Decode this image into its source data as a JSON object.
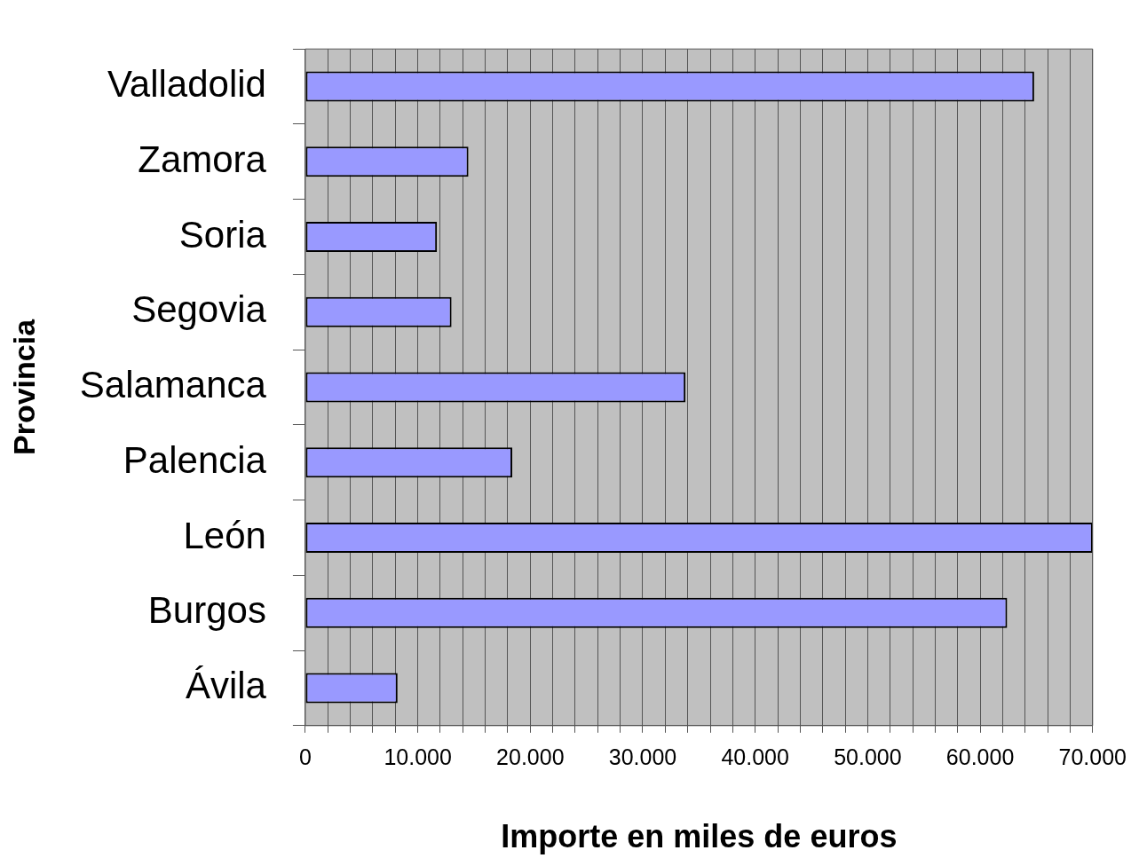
{
  "chart_data": {
    "type": "bar",
    "orientation": "horizontal",
    "xlabel": "Importe en miles de euros",
    "ylabel": "Provincia",
    "categories": [
      "Valladolid",
      "Zamora",
      "Soria",
      "Segovia",
      "Salamanca",
      "Palencia",
      "León",
      "Burgos",
      "Ávila"
    ],
    "values": [
      64800,
      14500,
      11700,
      13000,
      33800,
      18400,
      70000,
      62400,
      8200
    ],
    "color": "#9999ff",
    "xlim": [
      0,
      70000
    ],
    "xticks": [
      0,
      {
        "value": 2000,
        "label": null
      },
      {
        "value": 4000,
        "label": null
      },
      {
        "value": 6000,
        "label": null
      },
      {
        "value": 8000,
        "label": null
      },
      {
        "value": 10000,
        "label": "10.000"
      },
      {
        "value": 12000,
        "label": null
      },
      {
        "value": 14000,
        "label": null
      },
      {
        "value": 16000,
        "label": null
      },
      {
        "value": 18000,
        "label": null
      },
      {
        "value": 20000,
        "label": "20.000"
      },
      {
        "value": 22000,
        "label": null
      },
      {
        "value": 24000,
        "label": null
      },
      {
        "value": 26000,
        "label": null
      },
      {
        "value": 28000,
        "label": null
      },
      {
        "value": 30000,
        "label": "30.000"
      },
      {
        "value": 32000,
        "label": null
      },
      {
        "value": 34000,
        "label": null
      },
      {
        "value": 36000,
        "label": null
      },
      {
        "value": 38000,
        "label": null
      },
      {
        "value": 40000,
        "label": "40.000"
      },
      {
        "value": 42000,
        "label": null
      },
      {
        "value": 44000,
        "label": null
      },
      {
        "value": 46000,
        "label": null
      },
      {
        "value": 48000,
        "label": null
      },
      {
        "value": 50000,
        "label": "50.000"
      },
      {
        "value": 52000,
        "label": null
      },
      {
        "value": 54000,
        "label": null
      },
      {
        "value": 56000,
        "label": null
      },
      {
        "value": 58000,
        "label": null
      },
      {
        "value": 60000,
        "label": "60.000"
      },
      {
        "value": 62000,
        "label": null
      },
      {
        "value": 64000,
        "label": null
      },
      {
        "value": 66000,
        "label": null
      },
      {
        "value": 68000,
        "label": null
      },
      {
        "value": 70000,
        "label": "70.000"
      }
    ],
    "grid": "x",
    "legend": false
  }
}
